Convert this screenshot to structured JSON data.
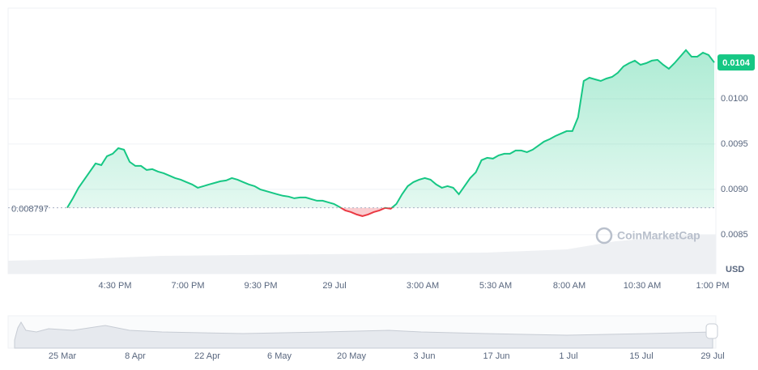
{
  "chart_data": {
    "type": "line",
    "series": [
      {
        "name": "USD",
        "color": "#16c784",
        "down_color": "#ea3943",
        "values": [
          0.008797,
          0.008902,
          0.009018,
          0.009107,
          0.009196,
          0.009286,
          0.009268,
          0.009366,
          0.009393,
          0.009455,
          0.009438,
          0.009304,
          0.009259,
          0.009259,
          0.009214,
          0.009223,
          0.009196,
          0.009179,
          0.009152,
          0.009125,
          0.009107,
          0.00908,
          0.009054,
          0.009018,
          0.009036,
          0.009054,
          0.009071,
          0.009089,
          0.009098,
          0.009125,
          0.009107,
          0.00908,
          0.009054,
          0.009036,
          0.009,
          0.008982,
          0.008964,
          0.008946,
          0.008929,
          0.00892,
          0.008902,
          0.008911,
          0.008911,
          0.008893,
          0.008875,
          0.008875,
          0.008857,
          0.008839,
          0.008804,
          0.008768,
          0.00875,
          0.008723,
          0.008705,
          0.008723,
          0.00875,
          0.008768,
          0.008795,
          0.008786,
          0.008839,
          0.008946,
          0.009036,
          0.00908,
          0.009107,
          0.009125,
          0.009107,
          0.009054,
          0.009018,
          0.009036,
          0.009018,
          0.008946,
          0.009036,
          0.009125,
          0.009188,
          0.009322,
          0.009348,
          0.009339,
          0.009375,
          0.009393,
          0.009393,
          0.009429,
          0.009429,
          0.009411,
          0.009438,
          0.009482,
          0.009527,
          0.009554,
          0.009589,
          0.009616,
          0.009643,
          0.009643,
          0.009795,
          0.010196,
          0.010232,
          0.010214,
          0.010196,
          0.010223,
          0.010241,
          0.010286,
          0.010357,
          0.010393,
          0.01042,
          0.010375,
          0.010393,
          0.01042,
          0.010429,
          0.010375,
          0.01033,
          0.010393,
          0.010464,
          0.010536,
          0.010464,
          0.010464,
          0.010509,
          0.010482,
          0.0104
        ]
      }
    ],
    "xticks": [
      "4:30 PM",
      "7:00 PM",
      "9:30 PM",
      "29 Jul",
      "3:00 AM",
      "5:30 AM",
      "8:00 AM",
      "10:30 AM",
      "1:00 PM"
    ],
    "ylim": [
      0.00807,
      0.011
    ],
    "yticks": [
      0.0085,
      {
        "value": 0.009,
        "label": "0.0090"
      },
      0.0095,
      {
        "value": 0.01,
        "label": "0.0100"
      }
    ],
    "grid": true,
    "watermark": "CoinMarketCap",
    "navigator": {
      "labels": [
        "25 Mar",
        "8 Apr",
        "22 Apr",
        "6 May",
        "20 May",
        "3 Jun",
        "17 Jun",
        "1 Jul",
        "15 Jul",
        "29 Jul"
      ]
    }
  }
}
